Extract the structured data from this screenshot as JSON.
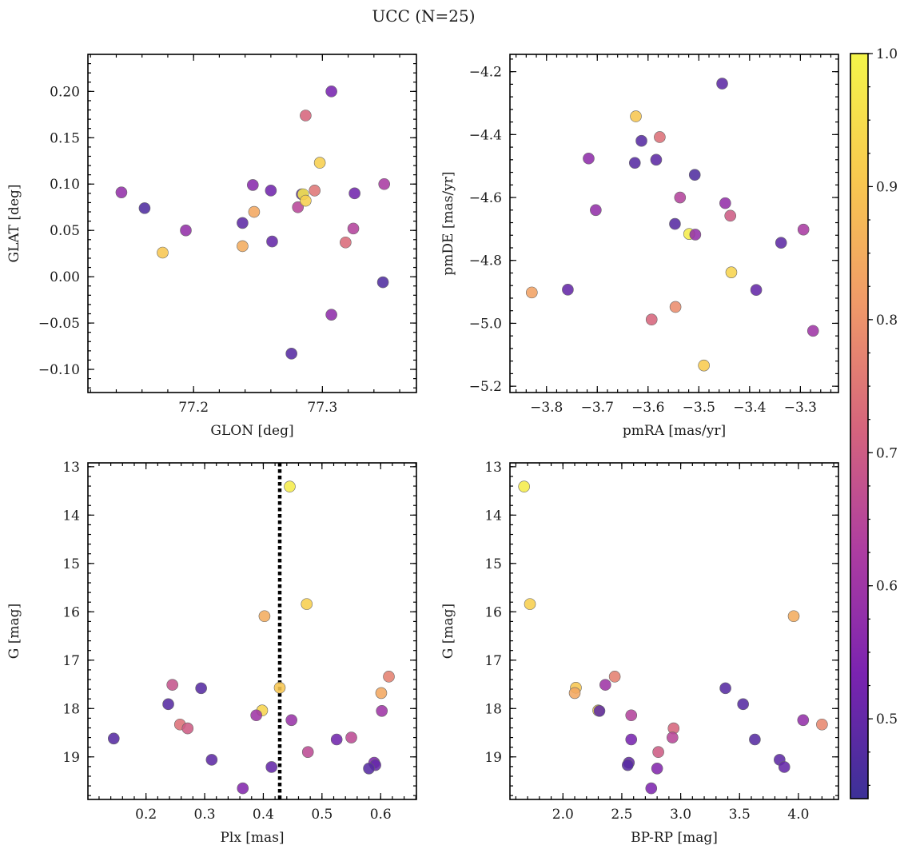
{
  "figure": {
    "title": "UCC (N=25)"
  },
  "colorbar": {
    "min": 0.44,
    "max": 1.0,
    "ticks": [
      0.5,
      0.6,
      0.7,
      0.8,
      0.9,
      1.0
    ],
    "tick_labels": [
      "0.5",
      "0.6",
      "0.7",
      "0.8",
      "0.9",
      "1.0"
    ],
    "colormap": "plasma",
    "stops": [
      "#3c3197",
      "#7a23b0",
      "#ad3da1",
      "#d6657c",
      "#f09a68",
      "#f8c94f",
      "#f4f54a"
    ]
  },
  "chart_data": [
    {
      "type": "scatter",
      "id": "glon_glat",
      "xlabel": "GLON [deg]",
      "ylabel": "GLAT [deg]",
      "xlim": [
        77.118,
        77.373
      ],
      "ylim": [
        -0.125,
        0.24
      ],
      "y_inverted": false,
      "xticks": [
        77.2,
        77.3
      ],
      "xtick_labels": [
        "77.2",
        "77.3"
      ],
      "yticks": [
        -0.1,
        -0.05,
        0.0,
        0.05,
        0.1,
        0.15,
        0.2
      ],
      "ytick_labels": [
        "−0.10",
        "−0.05",
        "0.00",
        "0.05",
        "0.10",
        "0.15",
        "0.20"
      ],
      "points": [
        {
          "x": 77.144,
          "y": 0.091,
          "c": 0.58
        },
        {
          "x": 77.162,
          "y": 0.074,
          "c": 0.47
        },
        {
          "x": 77.176,
          "y": 0.026,
          "c": 0.9
        },
        {
          "x": 77.194,
          "y": 0.05,
          "c": 0.58
        },
        {
          "x": 77.238,
          "y": 0.058,
          "c": 0.49
        },
        {
          "x": 77.238,
          "y": 0.033,
          "c": 0.85
        },
        {
          "x": 77.246,
          "y": 0.099,
          "c": 0.56
        },
        {
          "x": 77.247,
          "y": 0.07,
          "c": 0.84
        },
        {
          "x": 77.26,
          "y": 0.093,
          "c": 0.52
        },
        {
          "x": 77.261,
          "y": 0.038,
          "c": 0.5
        },
        {
          "x": 77.276,
          "y": -0.083,
          "c": 0.48
        },
        {
          "x": 77.281,
          "y": 0.075,
          "c": 0.65
        },
        {
          "x": 77.284,
          "y": 0.089,
          "c": 0.49
        },
        {
          "x": 77.285,
          "y": 0.089,
          "c": 0.97
        },
        {
          "x": 77.287,
          "y": 0.082,
          "c": 0.92
        },
        {
          "x": 77.287,
          "y": 0.174,
          "c": 0.72
        },
        {
          "x": 77.294,
          "y": 0.093,
          "c": 0.75
        },
        {
          "x": 77.298,
          "y": 0.123,
          "c": 0.92
        },
        {
          "x": 77.307,
          "y": 0.2,
          "c": 0.53
        },
        {
          "x": 77.307,
          "y": -0.041,
          "c": 0.57
        },
        {
          "x": 77.318,
          "y": 0.037,
          "c": 0.73
        },
        {
          "x": 77.324,
          "y": 0.052,
          "c": 0.64
        },
        {
          "x": 77.325,
          "y": 0.09,
          "c": 0.52
        },
        {
          "x": 77.347,
          "y": -0.006,
          "c": 0.47
        },
        {
          "x": 77.348,
          "y": 0.1,
          "c": 0.62
        }
      ]
    },
    {
      "type": "scatter",
      "id": "pm",
      "xlabel": "pmRA [mas/yr]",
      "ylabel": "pmDE [mas/yr]",
      "xlim": [
        -3.872,
        -3.225
      ],
      "ylim": [
        -5.22,
        -4.145
      ],
      "y_inverted": false,
      "xticks": [
        -3.8,
        -3.7,
        -3.6,
        -3.5,
        -3.4,
        -3.3
      ],
      "xtick_labels": [
        "−3.8",
        "−3.7",
        "−3.6",
        "−3.5",
        "−3.4",
        "−3.3"
      ],
      "yticks": [
        -5.2,
        -5.0,
        -4.8,
        -4.6,
        -4.4,
        -4.2
      ],
      "ytick_labels": [
        "−5.2",
        "−5.0",
        "−4.8",
        "−4.6",
        "−4.4",
        "−4.2"
      ],
      "points": [
        {
          "x": -3.454,
          "y": -4.238,
          "c": 0.49
        },
        {
          "x": -3.624,
          "y": -4.342,
          "c": 0.9
        },
        {
          "x": -3.577,
          "y": -4.408,
          "c": 0.74
        },
        {
          "x": -3.613,
          "y": -4.42,
          "c": 0.48
        },
        {
          "x": -3.717,
          "y": -4.476,
          "c": 0.57
        },
        {
          "x": -3.626,
          "y": -4.49,
          "c": 0.48
        },
        {
          "x": -3.584,
          "y": -4.48,
          "c": 0.49
        },
        {
          "x": -3.508,
          "y": -4.528,
          "c": 0.47
        },
        {
          "x": -3.537,
          "y": -4.6,
          "c": 0.64
        },
        {
          "x": -3.448,
          "y": -4.618,
          "c": 0.58
        },
        {
          "x": -3.703,
          "y": -4.64,
          "c": 0.58
        },
        {
          "x": -3.438,
          "y": -4.658,
          "c": 0.7
        },
        {
          "x": -3.547,
          "y": -4.684,
          "c": 0.48
        },
        {
          "x": -3.294,
          "y": -4.702,
          "c": 0.62
        },
        {
          "x": -3.519,
          "y": -4.716,
          "c": 0.98
        },
        {
          "x": -3.507,
          "y": -4.718,
          "c": 0.58
        },
        {
          "x": -3.338,
          "y": -4.744,
          "c": 0.49
        },
        {
          "x": -3.436,
          "y": -4.838,
          "c": 0.93
        },
        {
          "x": -3.387,
          "y": -4.894,
          "c": 0.5
        },
        {
          "x": -3.758,
          "y": -4.893,
          "c": 0.5
        },
        {
          "x": -3.829,
          "y": -4.902,
          "c": 0.83
        },
        {
          "x": -3.546,
          "y": -4.948,
          "c": 0.79
        },
        {
          "x": -3.593,
          "y": -4.988,
          "c": 0.72
        },
        {
          "x": -3.275,
          "y": -5.024,
          "c": 0.6
        },
        {
          "x": -3.49,
          "y": -5.134,
          "c": 0.91
        }
      ]
    },
    {
      "type": "scatter",
      "id": "plx_g",
      "xlabel": "Plx [mas]",
      "ylabel": "G [mag]",
      "xlim": [
        0.101,
        0.661
      ],
      "ylim": [
        12.92,
        19.88
      ],
      "y_inverted": true,
      "xticks": [
        0.2,
        0.3,
        0.4,
        0.5,
        0.6
      ],
      "xtick_labels": [
        "0.2",
        "0.3",
        "0.4",
        "0.5",
        "0.6"
      ],
      "yticks": [
        13,
        14,
        15,
        16,
        17,
        18,
        19
      ],
      "ytick_labels": [
        "13",
        "14",
        "15",
        "16",
        "17",
        "18",
        "19"
      ],
      "vline": {
        "x": 0.428,
        "style": "dotted"
      },
      "points": [
        {
          "x": 0.445,
          "y": 13.41,
          "c": 0.98
        },
        {
          "x": 0.474,
          "y": 15.84,
          "c": 0.92
        },
        {
          "x": 0.402,
          "y": 16.09,
          "c": 0.85
        },
        {
          "x": 0.614,
          "y": 17.34,
          "c": 0.77
        },
        {
          "x": 0.245,
          "y": 17.51,
          "c": 0.68
        },
        {
          "x": 0.428,
          "y": 17.57,
          "c": 0.9
        },
        {
          "x": 0.294,
          "y": 17.58,
          "c": 0.48
        },
        {
          "x": 0.601,
          "y": 17.68,
          "c": 0.84
        },
        {
          "x": 0.238,
          "y": 17.91,
          "c": 0.48
        },
        {
          "x": 0.398,
          "y": 18.04,
          "c": 0.93
        },
        {
          "x": 0.602,
          "y": 18.05,
          "c": 0.6
        },
        {
          "x": 0.388,
          "y": 18.14,
          "c": 0.6
        },
        {
          "x": 0.448,
          "y": 18.24,
          "c": 0.59
        },
        {
          "x": 0.258,
          "y": 18.33,
          "c": 0.74
        },
        {
          "x": 0.271,
          "y": 18.41,
          "c": 0.7
        },
        {
          "x": 0.55,
          "y": 18.6,
          "c": 0.66
        },
        {
          "x": 0.145,
          "y": 18.62,
          "c": 0.48
        },
        {
          "x": 0.525,
          "y": 18.64,
          "c": 0.52
        },
        {
          "x": 0.476,
          "y": 18.9,
          "c": 0.66
        },
        {
          "x": 0.312,
          "y": 19.06,
          "c": 0.49
        },
        {
          "x": 0.589,
          "y": 19.12,
          "c": 0.54
        },
        {
          "x": 0.591,
          "y": 19.17,
          "c": 0.5
        },
        {
          "x": 0.414,
          "y": 19.21,
          "c": 0.5
        },
        {
          "x": 0.58,
          "y": 19.24,
          "c": 0.48
        },
        {
          "x": 0.365,
          "y": 19.65,
          "c": 0.55
        }
      ]
    },
    {
      "type": "scatter",
      "id": "cmd",
      "xlabel": "BP-RP [mag]",
      "ylabel": "G [mag]",
      "xlim": [
        1.55,
        4.34
      ],
      "ylim": [
        12.92,
        19.88
      ],
      "y_inverted": true,
      "xticks": [
        2.0,
        2.5,
        3.0,
        3.5,
        4.0
      ],
      "xtick_labels": [
        "2.0",
        "2.5",
        "3.0",
        "3.5",
        "4.0"
      ],
      "yticks": [
        13,
        14,
        15,
        16,
        17,
        18,
        19
      ],
      "ytick_labels": [
        "13",
        "14",
        "15",
        "16",
        "17",
        "18",
        "19"
      ],
      "points": [
        {
          "x": 1.67,
          "y": 13.41,
          "c": 0.98
        },
        {
          "x": 1.72,
          "y": 15.84,
          "c": 0.92
        },
        {
          "x": 3.96,
          "y": 16.09,
          "c": 0.85
        },
        {
          "x": 2.44,
          "y": 17.34,
          "c": 0.77
        },
        {
          "x": 2.36,
          "y": 17.51,
          "c": 0.6
        },
        {
          "x": 2.11,
          "y": 17.57,
          "c": 0.9
        },
        {
          "x": 3.38,
          "y": 17.58,
          "c": 0.48
        },
        {
          "x": 2.1,
          "y": 17.68,
          "c": 0.84
        },
        {
          "x": 3.53,
          "y": 17.91,
          "c": 0.48
        },
        {
          "x": 2.3,
          "y": 18.04,
          "c": 0.93
        },
        {
          "x": 2.31,
          "y": 18.05,
          "c": 0.49
        },
        {
          "x": 2.58,
          "y": 18.14,
          "c": 0.64
        },
        {
          "x": 4.04,
          "y": 18.24,
          "c": 0.58
        },
        {
          "x": 4.2,
          "y": 18.33,
          "c": 0.78
        },
        {
          "x": 2.94,
          "y": 18.41,
          "c": 0.72
        },
        {
          "x": 2.93,
          "y": 18.6,
          "c": 0.65
        },
        {
          "x": 2.58,
          "y": 18.64,
          "c": 0.53
        },
        {
          "x": 3.63,
          "y": 18.64,
          "c": 0.48
        },
        {
          "x": 2.81,
          "y": 18.9,
          "c": 0.7
        },
        {
          "x": 3.84,
          "y": 19.06,
          "c": 0.49
        },
        {
          "x": 2.56,
          "y": 19.12,
          "c": 0.5
        },
        {
          "x": 2.55,
          "y": 19.17,
          "c": 0.48
        },
        {
          "x": 3.88,
          "y": 19.21,
          "c": 0.5
        },
        {
          "x": 2.8,
          "y": 19.24,
          "c": 0.55
        },
        {
          "x": 2.75,
          "y": 19.65,
          "c": 0.54
        }
      ]
    }
  ]
}
